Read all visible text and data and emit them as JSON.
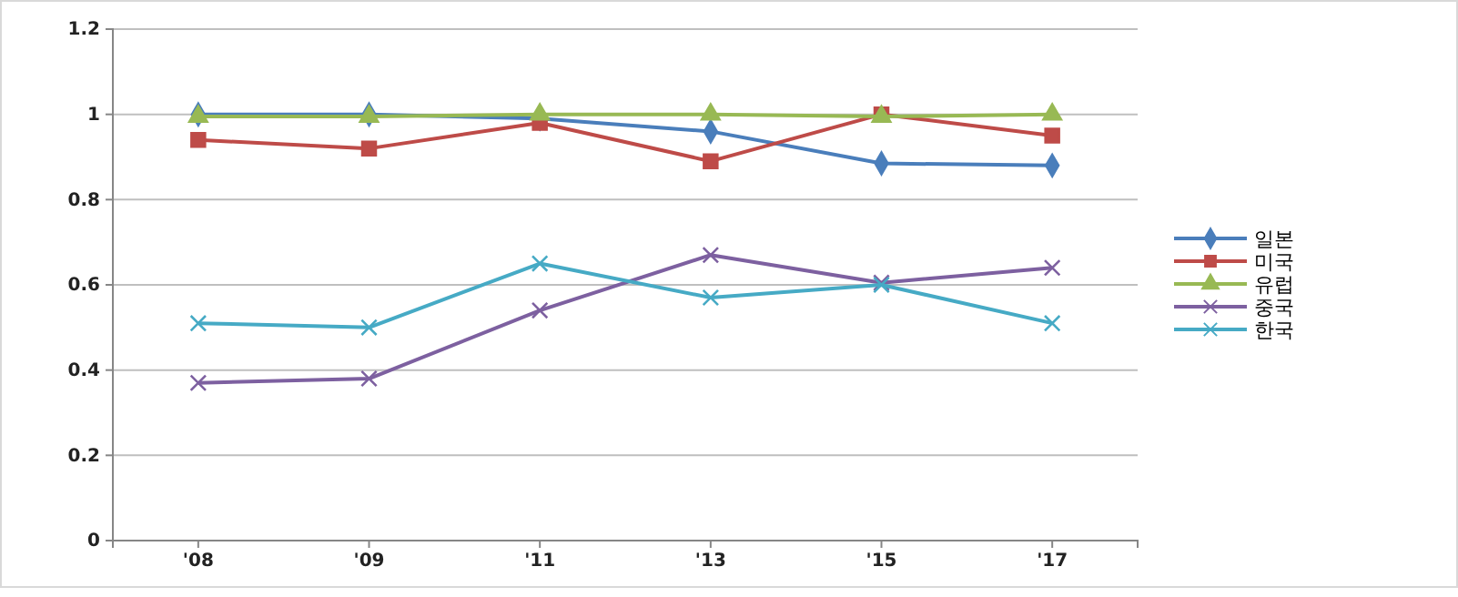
{
  "chart_data": {
    "type": "line",
    "categories": [
      "'08",
      "'09",
      "'11",
      "'13",
      "'15",
      "'17"
    ],
    "ylim": [
      0,
      1.2
    ],
    "yticks": [
      {
        "value": 0,
        "label": "0"
      },
      {
        "value": 0.2,
        "label": "0.2"
      },
      {
        "value": 0.4,
        "label": "0.4"
      },
      {
        "value": 0.6,
        "label": "0.6"
      },
      {
        "value": 0.8,
        "label": "0.8"
      },
      {
        "value": 1,
        "label": "1"
      },
      {
        "value": 1.2,
        "label": "1.2"
      }
    ],
    "grid": "y",
    "legend": "right",
    "line_style": "solid",
    "series": [
      {
        "name": "일본",
        "color": "#4a7ebb",
        "marker": "diamond",
        "values": [
          1,
          1,
          0.99,
          0.96,
          0.885,
          0.88
        ]
      },
      {
        "name": "미국",
        "color": "#be4b48",
        "marker": "square",
        "values": [
          0.94,
          0.92,
          0.98,
          0.89,
          1,
          0.95
        ]
      },
      {
        "name": "유럽",
        "color": "#98b954",
        "marker": "triangle",
        "values": [
          0.995,
          0.995,
          1,
          1,
          0.995,
          1
        ]
      },
      {
        "name": "중국",
        "color": "#7d60a0",
        "marker": "cross",
        "values": [
          0.37,
          0.38,
          0.54,
          0.67,
          0.605,
          0.64
        ]
      },
      {
        "name": "한국",
        "color": "#46aac5",
        "marker": "cross",
        "values": [
          0.51,
          0.5,
          0.65,
          0.57,
          0.6,
          0.51
        ]
      }
    ]
  }
}
